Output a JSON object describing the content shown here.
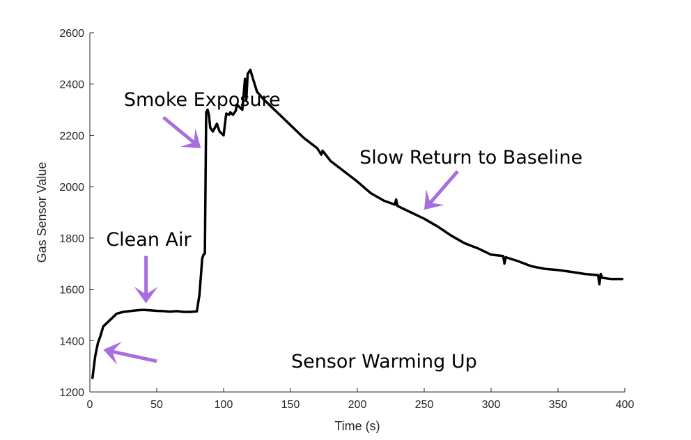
{
  "chart_data": {
    "type": "line",
    "xlabel": "Time (s)",
    "ylabel": "Gas Sensor Value",
    "xlim": [
      0,
      400
    ],
    "ylim": [
      1200,
      2600
    ],
    "xticks": [
      0,
      50,
      100,
      150,
      200,
      250,
      300,
      350,
      400
    ],
    "yticks": [
      1200,
      1400,
      1600,
      1800,
      2000,
      2200,
      2400,
      2600
    ],
    "grid": false,
    "line_color": "#000000",
    "arrow_color": "#a86ee0",
    "series": [
      {
        "x": [
          2,
          4,
          6,
          8,
          10,
          12,
          15,
          18,
          20,
          25,
          30,
          35,
          40,
          45,
          50,
          55,
          60,
          65,
          70,
          75,
          80,
          82,
          84,
          85,
          86,
          87,
          88,
          89,
          90,
          92,
          95,
          97,
          100,
          102,
          104,
          105,
          107,
          109,
          110,
          112,
          114,
          116,
          117,
          118,
          120,
          122,
          125,
          130,
          140,
          150,
          160,
          170,
          173,
          174,
          180,
          190,
          200,
          210,
          220,
          228,
          229,
          230,
          240,
          250,
          260,
          270,
          280,
          290,
          300,
          309,
          310,
          311,
          320,
          330,
          340,
          350,
          360,
          370,
          380,
          381,
          382,
          383,
          390,
          398
        ],
        "y": [
          1255,
          1340,
          1390,
          1420,
          1455,
          1465,
          1480,
          1495,
          1505,
          1512,
          1515,
          1518,
          1520,
          1518,
          1516,
          1515,
          1513,
          1515,
          1512,
          1512,
          1514,
          1580,
          1720,
          1735,
          1740,
          2290,
          2300,
          2280,
          2230,
          2215,
          2245,
          2215,
          2200,
          2285,
          2280,
          2290,
          2280,
          2295,
          2320,
          2310,
          2300,
          2420,
          2340,
          2440,
          2455,
          2420,
          2370,
          2340,
          2290,
          2240,
          2190,
          2150,
          2125,
          2140,
          2100,
          2060,
          2020,
          1975,
          1945,
          1930,
          1950,
          1925,
          1900,
          1875,
          1845,
          1810,
          1780,
          1760,
          1735,
          1730,
          1700,
          1725,
          1710,
          1690,
          1680,
          1675,
          1668,
          1660,
          1655,
          1620,
          1660,
          1645,
          1640,
          1640
        ]
      }
    ],
    "annotations": [
      {
        "text": "Smoke Exposure",
        "x": 84,
        "y": 2315,
        "arrow_from": [
          55,
          2270
        ],
        "arrow_to": [
          83,
          2150
        ]
      },
      {
        "text": "Clean Air",
        "x": 44,
        "y": 1770,
        "arrow_from": [
          42,
          1730
        ],
        "arrow_to": [
          42,
          1545
        ]
      },
      {
        "text": "Slow Return to Baseline",
        "x": 285,
        "y": 2090,
        "arrow_from": [
          275,
          2060
        ],
        "arrow_to": [
          250,
          1910
        ]
      },
      {
        "text": "Sensor Warming Up",
        "x": 220,
        "y": 1295,
        "arrow_from": [
          50,
          1320
        ],
        "arrow_to": [
          10,
          1365
        ]
      }
    ]
  }
}
